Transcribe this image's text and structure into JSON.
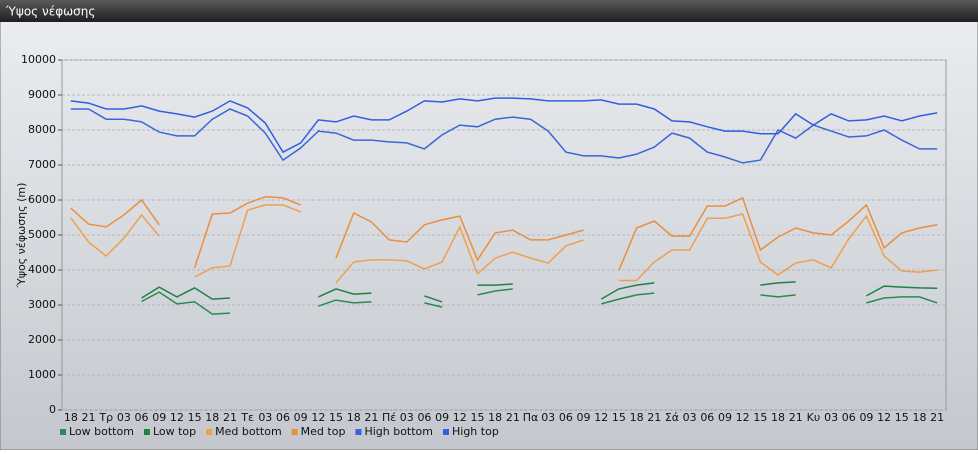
{
  "chart_data": {
    "type": "line",
    "title": "Ύψος νέφωσης",
    "y_label": "Ύψος νέφωσης (m)",
    "categories": [
      "18",
      "21",
      "Τρ",
      "03",
      "06",
      "09",
      "12",
      "15",
      "18",
      "21",
      "Τε",
      "03",
      "06",
      "09",
      "12",
      "15",
      "18",
      "21",
      "Πέ",
      "03",
      "06",
      "09",
      "12",
      "15",
      "18",
      "21",
      "Πα",
      "03",
      "06",
      "09",
      "12",
      "15",
      "18",
      "21",
      "Σά",
      "03",
      "06",
      "09",
      "12",
      "15",
      "18",
      "21",
      "Κυ",
      "03",
      "06",
      "09",
      "12",
      "15",
      "18",
      "21"
    ],
    "ylim": [
      0,
      10000
    ],
    "yticks": [
      0,
      1000,
      2000,
      3000,
      4000,
      5000,
      6000,
      7000,
      8000,
      9000,
      10000
    ],
    "grid": true,
    "legend": "bottom-left",
    "series": [
      {
        "name": "Low bottom",
        "color": "#2a8a52",
        "values": [
          null,
          null,
          null,
          null,
          3100,
          3370,
          3030,
          3090,
          2740,
          2770,
          null,
          null,
          null,
          null,
          2970,
          3140,
          3060,
          3090,
          null,
          null,
          3060,
          2940,
          null,
          3290,
          3400,
          3460,
          null,
          null,
          null,
          null,
          3030,
          3170,
          3290,
          3340,
          null,
          null,
          null,
          null,
          null,
          3290,
          3230,
          3290,
          null,
          null,
          null,
          3060,
          3200,
          3230,
          3230,
          3060
        ]
      },
      {
        "name": "Low top",
        "color": "#1f8048",
        "values": [
          null,
          null,
          null,
          null,
          3200,
          3510,
          3230,
          3490,
          3170,
          3200,
          null,
          null,
          null,
          null,
          3230,
          3460,
          3310,
          3340,
          null,
          null,
          3260,
          3090,
          null,
          3570,
          3570,
          3600,
          null,
          null,
          null,
          null,
          3170,
          3460,
          3570,
          3630,
          null,
          null,
          null,
          null,
          null,
          3570,
          3630,
          3660,
          null,
          null,
          null,
          3260,
          3540,
          3510,
          3490,
          3480
        ]
      },
      {
        "name": "Med bottom",
        "color": "#f0a04c",
        "values": [
          5490,
          4800,
          4400,
          4910,
          5570,
          4970,
          null,
          3800,
          4060,
          4110,
          5710,
          5860,
          5860,
          5660,
          null,
          3630,
          4230,
          4290,
          4290,
          4260,
          4030,
          4230,
          5230,
          3890,
          4340,
          4510,
          4340,
          4200,
          4690,
          4860,
          null,
          3700,
          3700,
          4230,
          4570,
          4570,
          5480,
          5480,
          5600,
          4230,
          3860,
          4200,
          4290,
          4060,
          4890,
          5540,
          4400,
          3970,
          3940,
          4000
        ]
      },
      {
        "name": "Med top",
        "color": "#ec8e3c",
        "values": [
          5770,
          5310,
          5230,
          5570,
          6000,
          5290,
          null,
          4060,
          5600,
          5630,
          5910,
          6090,
          6060,
          5860,
          null,
          4340,
          5630,
          5370,
          4860,
          4800,
          5290,
          5430,
          5540,
          4290,
          5060,
          5140,
          4860,
          4860,
          5000,
          5140,
          null,
          3990,
          5200,
          5400,
          4970,
          4970,
          5830,
          5830,
          6060,
          4570,
          4940,
          5200,
          5060,
          5000,
          5400,
          5860,
          4630,
          5060,
          5200,
          5290
        ]
      },
      {
        "name": "High bottom",
        "color": "#3a66d8",
        "values": [
          8600,
          8600,
          8310,
          8310,
          8230,
          7940,
          7830,
          7830,
          8310,
          8600,
          8400,
          7910,
          7140,
          7490,
          7970,
          7910,
          7710,
          7710,
          7660,
          7630,
          7460,
          7860,
          8140,
          8090,
          8310,
          8370,
          8310,
          7970,
          7370,
          7260,
          7260,
          7200,
          7310,
          7510,
          7910,
          7770,
          7370,
          7230,
          7060,
          7140,
          8000,
          7770,
          8140,
          7970,
          7800,
          7830,
          8000,
          7710,
          7460,
          7460
        ]
      },
      {
        "name": "High top",
        "color": "#2f5fe0",
        "values": [
          8830,
          8770,
          8600,
          8600,
          8690,
          8540,
          8460,
          8370,
          8540,
          8830,
          8630,
          8200,
          7370,
          7630,
          8290,
          8230,
          8400,
          8290,
          8290,
          8540,
          8830,
          8800,
          8890,
          8830,
          8910,
          8910,
          8890,
          8830,
          8830,
          8830,
          8860,
          8740,
          8740,
          8600,
          8260,
          8230,
          8090,
          7970,
          7970,
          7890,
          7890,
          8460,
          8140,
          8460,
          8260,
          8290,
          8400,
          8260,
          8400,
          8490
        ]
      }
    ]
  }
}
